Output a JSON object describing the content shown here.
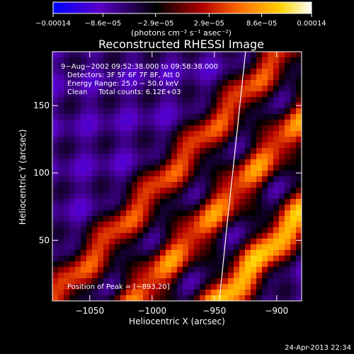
{
  "chart_data": {
    "type": "heatmap",
    "title": "Reconstructed RHESSI Image",
    "xlabel": "Heliocentric X (arcsec)",
    "ylabel": "Heliocentric Y (arcsec)",
    "xlim": [
      -1080,
      -880
    ],
    "ylim": [
      5,
      190
    ],
    "x_ticks": [
      -1050,
      -1000,
      -950,
      -900
    ],
    "x_tick_labels": [
      "−1050",
      "−1000",
      "−950",
      "−900"
    ],
    "y_ticks": [
      50,
      100,
      150
    ],
    "y_tick_labels": [
      "50",
      "100",
      "150"
    ],
    "colorbar": {
      "ticks": [
        -0.00014,
        -8.6e-05,
        -2.9e-05,
        2.9e-05,
        8.6e-05,
        0.00014
      ],
      "tick_labels": [
        "−0.00014",
        "−8.6e−05",
        "−2.9e−05",
        "2.9e−05",
        "8.6e−05",
        "0.00014"
      ],
      "label": "(photons cm⁻² s⁻¹ asec⁻²)",
      "range": [
        -0.00014,
        0.00014
      ],
      "colormap": [
        "#0000ff",
        "#5a00c8",
        "#000000",
        "#b40000",
        "#ff6a00",
        "#ffd200",
        "#ffffff"
      ]
    },
    "annotations": [
      "9−Aug−2002 09:52:38.000 to 09:58:38.000",
      "Detectors: 3F 5F 6F 7F 8F, Att 0",
      "Energy Range: 25.0 − 50.0 keV",
      "Clean     Total counts: 6.12E+03",
      "Position of Peak = [−893,20]"
    ],
    "peak": {
      "x": -893,
      "y": 20
    },
    "limb_curve": [
      {
        "x": -946,
        "y": 5
      },
      {
        "x": -940,
        "y": 60
      },
      {
        "x": -933,
        "y": 120
      },
      {
        "x": -925,
        "y": 190
      }
    ],
    "image_approximation": {
      "note": "stripes at 45 degrees; dominant bright bands",
      "bright_bands": [
        {
          "x_at_y0": -950,
          "strength": 1.0
        },
        {
          "x_at_y0": -1020,
          "strength": 0.8
        },
        {
          "x_at_y0": -1085,
          "strength": 0.7
        }
      ]
    },
    "grid": false,
    "legend": "none"
  },
  "footer": {
    "timestamp": "24-Apr-2013 22:34"
  }
}
